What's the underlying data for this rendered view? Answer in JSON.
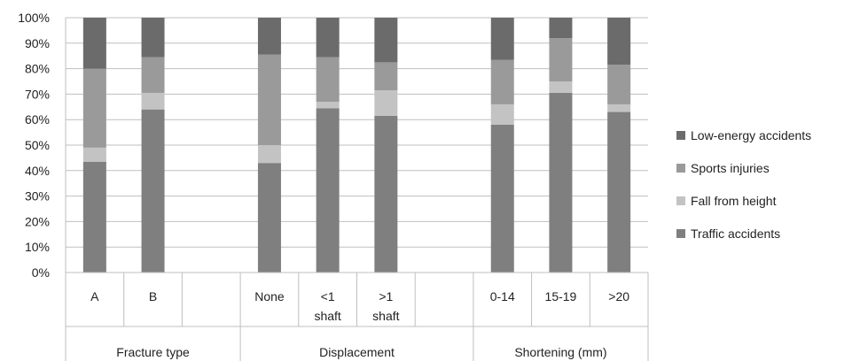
{
  "chart_data": {
    "type": "bar",
    "stacked": true,
    "normalized_percent": true,
    "categories": [
      "A",
      "B",
      "",
      "None",
      "<1 shaft",
      ">1 shaft",
      "",
      "0-14",
      "15-19",
      ">20"
    ],
    "category_lines": [
      [
        "A"
      ],
      [
        "B"
      ],
      [],
      [
        "None"
      ],
      [
        "<1",
        "shaft"
      ],
      [
        ">1",
        "shaft"
      ],
      [],
      [
        "0-14"
      ],
      [
        "15-19"
      ],
      [
        ">20"
      ]
    ],
    "groups": [
      {
        "label": "Fracture type",
        "span": 3
      },
      {
        "label": "Displacement",
        "span": 4
      },
      {
        "label": "Shortening (mm)",
        "span": 3
      }
    ],
    "series": [
      {
        "name": "Traffic accidents",
        "color": "#7f7f7f",
        "values": [
          43.5,
          64,
          null,
          43,
          64.5,
          61.5,
          null,
          58,
          70.5,
          63
        ]
      },
      {
        "name": "Fall from height",
        "color": "#c3c3c3",
        "values": [
          5.5,
          6.5,
          null,
          7,
          2.5,
          10,
          null,
          8,
          4.5,
          3
        ]
      },
      {
        "name": "Sports injuries",
        "color": "#9a9a9a",
        "values": [
          31,
          14,
          null,
          35.5,
          17.5,
          11,
          null,
          17.5,
          17,
          15.5
        ]
      },
      {
        "name": "Low-energy accidents",
        "color": "#6b6b6b",
        "values": [
          20,
          15.5,
          null,
          14.5,
          15.5,
          17.5,
          null,
          16.5,
          8,
          18.5
        ]
      }
    ],
    "ylim": [
      0,
      100
    ],
    "yticks": [
      "0%",
      "10%",
      "20%",
      "30%",
      "40%",
      "50%",
      "60%",
      "70%",
      "80%",
      "90%",
      "100%"
    ],
    "grid": true,
    "legend_position": "right",
    "legend_order": [
      "Low-energy accidents",
      "Sports injuries",
      "Fall from height",
      "Traffic accidents"
    ],
    "title": "",
    "xlabel": "",
    "ylabel": ""
  }
}
